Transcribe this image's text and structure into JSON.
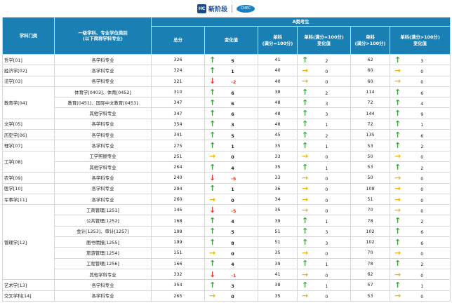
{
  "header": {
    "brand": "新阶段",
    "brand_badge": "HC",
    "partner_logo": "CMEC"
  },
  "table": {
    "col_category": "学科门类",
    "col_discipline": "一级学科、专业学位类别\n(以下简称学科专业)",
    "group_a": "A类考生",
    "col_total": "总分",
    "col_change": "变化值",
    "col_single100": "单科\n(满分=100分)",
    "col_single100_change": "单科(满分=100分)\n变化值",
    "col_single150": "单科\n(满分>100分)",
    "col_single150_change": "单科(满分>100分)\n变化值",
    "rows": [
      {
        "cat": "哲学[01]",
        "span": 1,
        "disc": "各学科专业",
        "total": "326",
        "arrow": "up",
        "change": "5",
        "s1": "41",
        "a1": "up",
        "c1": "2",
        "s2": "62",
        "a2": "up",
        "c2": "3"
      },
      {
        "cat": "经济学[02]",
        "span": 1,
        "disc": "各学科专业",
        "total": "324",
        "arrow": "up",
        "change": "1",
        "s1": "40",
        "a1": "right",
        "c1": "0",
        "s2": "60",
        "a2": "right",
        "c2": "0"
      },
      {
        "cat": "法学[03]",
        "span": 1,
        "disc": "各学科专业",
        "total": "321",
        "arrow": "down",
        "change": "-2",
        "s1": "40",
        "a1": "right",
        "c1": "0",
        "s2": "60",
        "a2": "right",
        "c2": "0"
      },
      {
        "cat": "教育学[04]",
        "span": 3,
        "disc": "体育学[0403]、体育[0452]",
        "total": "310",
        "arrow": "up",
        "change": "6",
        "s1": "38",
        "a1": "up",
        "c1": "2",
        "s2": "114",
        "a2": "up",
        "c2": "6"
      },
      {
        "cat": "",
        "span": 0,
        "disc": "教育[0451]、国际中文教育[0453]",
        "total": "347",
        "arrow": "up",
        "change": "6",
        "s1": "48",
        "a1": "up",
        "c1": "3",
        "s2": "72",
        "a2": "up",
        "c2": "4"
      },
      {
        "cat": "",
        "span": 0,
        "disc": "其他学科专业",
        "total": "347",
        "arrow": "up",
        "change": "6",
        "s1": "48",
        "a1": "up",
        "c1": "3",
        "s2": "144",
        "a2": "up",
        "c2": "9"
      },
      {
        "cat": "文学[05]",
        "span": 1,
        "disc": "各学科专业",
        "total": "354",
        "arrow": "up",
        "change": "3",
        "s1": "48",
        "a1": "up",
        "c1": "1",
        "s2": "72",
        "a2": "up",
        "c2": "1"
      },
      {
        "cat": "历史学[06]",
        "span": 1,
        "disc": "各学科专业",
        "total": "341",
        "arrow": "up",
        "change": "5",
        "s1": "45",
        "a1": "up",
        "c1": "2",
        "s2": "135",
        "a2": "up",
        "c2": "6"
      },
      {
        "cat": "理学[07]",
        "span": 1,
        "disc": "各学科专业",
        "total": "275",
        "arrow": "up",
        "change": "1",
        "s1": "35",
        "a1": "up",
        "c1": "1",
        "s2": "53",
        "a2": "up",
        "c2": "2"
      },
      {
        "cat": "工学[08]",
        "span": 2,
        "disc": "工学照顾专业",
        "total": "251",
        "arrow": "right",
        "change": "0",
        "s1": "33",
        "a1": "right",
        "c1": "0",
        "s2": "50",
        "a2": "right",
        "c2": "0"
      },
      {
        "cat": "",
        "span": 0,
        "disc": "其他学科专业",
        "total": "264",
        "arrow": "up",
        "change": "4",
        "s1": "35",
        "a1": "up",
        "c1": "1",
        "s2": "53",
        "a2": "up",
        "c2": "2"
      },
      {
        "cat": "农学[09]",
        "span": 1,
        "disc": "各学科专业",
        "total": "240",
        "arrow": "down",
        "change": "-5",
        "s1": "33",
        "a1": "right",
        "c1": "0",
        "s2": "50",
        "a2": "right",
        "c2": "0"
      },
      {
        "cat": "医学[10]",
        "span": 1,
        "disc": "各学科专业",
        "total": "294",
        "arrow": "up",
        "change": "1",
        "s1": "36",
        "a1": "right",
        "c1": "0",
        "s2": "108",
        "a2": "right",
        "c2": "0"
      },
      {
        "cat": "军事学[11]",
        "span": 1,
        "disc": "各学科专业",
        "total": "260",
        "arrow": "right",
        "change": "0",
        "s1": "34",
        "a1": "right",
        "c1": "0",
        "s2": "51",
        "a2": "right",
        "c2": "0"
      },
      {
        "cat": "管理学[12]",
        "span": 7,
        "disc": "工商管理[1251]",
        "total": "145",
        "arrow": "down",
        "change": "-5",
        "s1": "35",
        "a1": "right",
        "c1": "0",
        "s2": "70",
        "a2": "right",
        "c2": "0"
      },
      {
        "cat": "",
        "span": 0,
        "disc": "公共管理[1252]",
        "total": "168",
        "arrow": "up",
        "change": "4",
        "s1": "39",
        "a1": "up",
        "c1": "1",
        "s2": "78",
        "a2": "up",
        "c2": "2"
      },
      {
        "cat": "",
        "span": 0,
        "disc": "会计[1253]、审计[1257]",
        "total": "199",
        "arrow": "up",
        "change": "5",
        "s1": "51",
        "a1": "up",
        "c1": "3",
        "s2": "102",
        "a2": "up",
        "c2": "6"
      },
      {
        "cat": "",
        "span": 0,
        "disc": "图书情报[1255]",
        "total": "199",
        "arrow": "up",
        "change": "8",
        "s1": "51",
        "a1": "up",
        "c1": "3",
        "s2": "102",
        "a2": "up",
        "c2": "6"
      },
      {
        "cat": "",
        "span": 0,
        "disc": "旅游管理[1254]",
        "total": "151",
        "arrow": "right",
        "change": "0",
        "s1": "35",
        "a1": "right",
        "c1": "0",
        "s2": "70",
        "a2": "right",
        "c2": "0"
      },
      {
        "cat": "",
        "span": 0,
        "disc": "工程管理[1256]",
        "total": "166",
        "arrow": "up",
        "change": "4",
        "s1": "39",
        "a1": "up",
        "c1": "1",
        "s2": "78",
        "a2": "up",
        "c2": "2"
      },
      {
        "cat": "",
        "span": 0,
        "disc": "其他学科专业",
        "total": "332",
        "arrow": "down",
        "change": "-1",
        "s1": "41",
        "a1": "right",
        "c1": "0",
        "s2": "62",
        "a2": "right",
        "c2": "0"
      },
      {
        "cat": "艺术学[13]",
        "span": 1,
        "disc": "各学科专业",
        "total": "354",
        "arrow": "up",
        "change": "3",
        "s1": "38",
        "a1": "up",
        "c1": "1",
        "s2": "57",
        "a2": "up",
        "c2": "1"
      },
      {
        "cat": "交叉学科[14]",
        "span": 1,
        "disc": "各学科专业",
        "total": "265",
        "arrow": "right",
        "change": "0",
        "s1": "35",
        "a1": "right",
        "c1": "0",
        "s2": "53",
        "a2": "right",
        "c2": "0"
      }
    ]
  },
  "icons": {
    "up": "arrow-up-icon",
    "down": "arrow-down-icon",
    "right": "arrow-right-icon"
  }
}
